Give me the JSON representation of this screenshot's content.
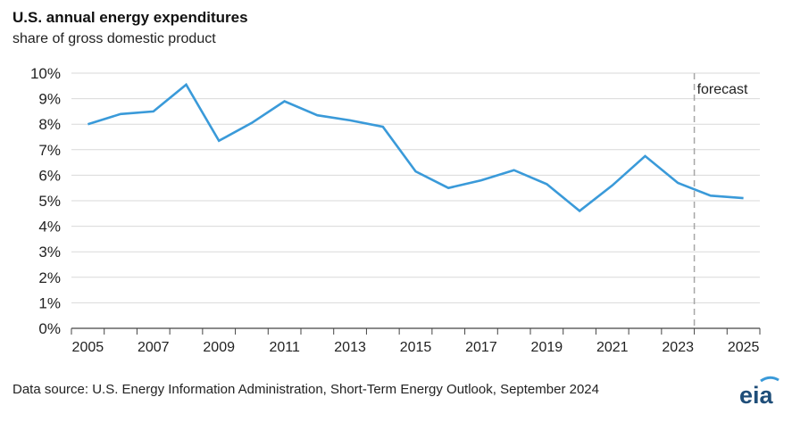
{
  "title": "U.S. annual energy expenditures",
  "subtitle": "share of gross domestic product",
  "source": "Data source: U.S. Energy Information Administration, Short-Term Energy Outlook, September 2024",
  "logo_text": "eia",
  "colors": {
    "line": "#3a9ad9",
    "grid": "#d9d9d9",
    "axis": "#444444",
    "forecast_line": "#a6a6a6",
    "logo": "#1f4e79",
    "logo_arc": "#3a9ad9"
  },
  "chart_data": {
    "type": "line",
    "title": "U.S. annual energy expenditures",
    "subtitle": "share of gross domestic product",
    "x": [
      2005,
      2006,
      2007,
      2008,
      2009,
      2010,
      2011,
      2012,
      2013,
      2014,
      2015,
      2016,
      2017,
      2018,
      2019,
      2020,
      2021,
      2022,
      2023,
      2024,
      2025
    ],
    "series": [
      {
        "values": [
          8.0,
          8.4,
          8.5,
          9.55,
          7.35,
          8.05,
          8.9,
          8.35,
          8.15,
          7.9,
          6.15,
          5.5,
          5.8,
          6.2,
          5.65,
          4.6,
          5.6,
          6.75,
          5.7,
          5.2,
          5.1
        ]
      }
    ],
    "xticks": [
      "2005",
      "2007",
      "2009",
      "2011",
      "2013",
      "2015",
      "2017",
      "2019",
      "2021",
      "2023",
      "2025"
    ],
    "yticks": [
      "0%",
      "1%",
      "2%",
      "3%",
      "4%",
      "5%",
      "6%",
      "7%",
      "8%",
      "9%",
      "10%"
    ],
    "ylim": [
      0,
      10
    ],
    "grid": true,
    "forecast_label": "forecast",
    "forecast_start": 2023.5
  }
}
